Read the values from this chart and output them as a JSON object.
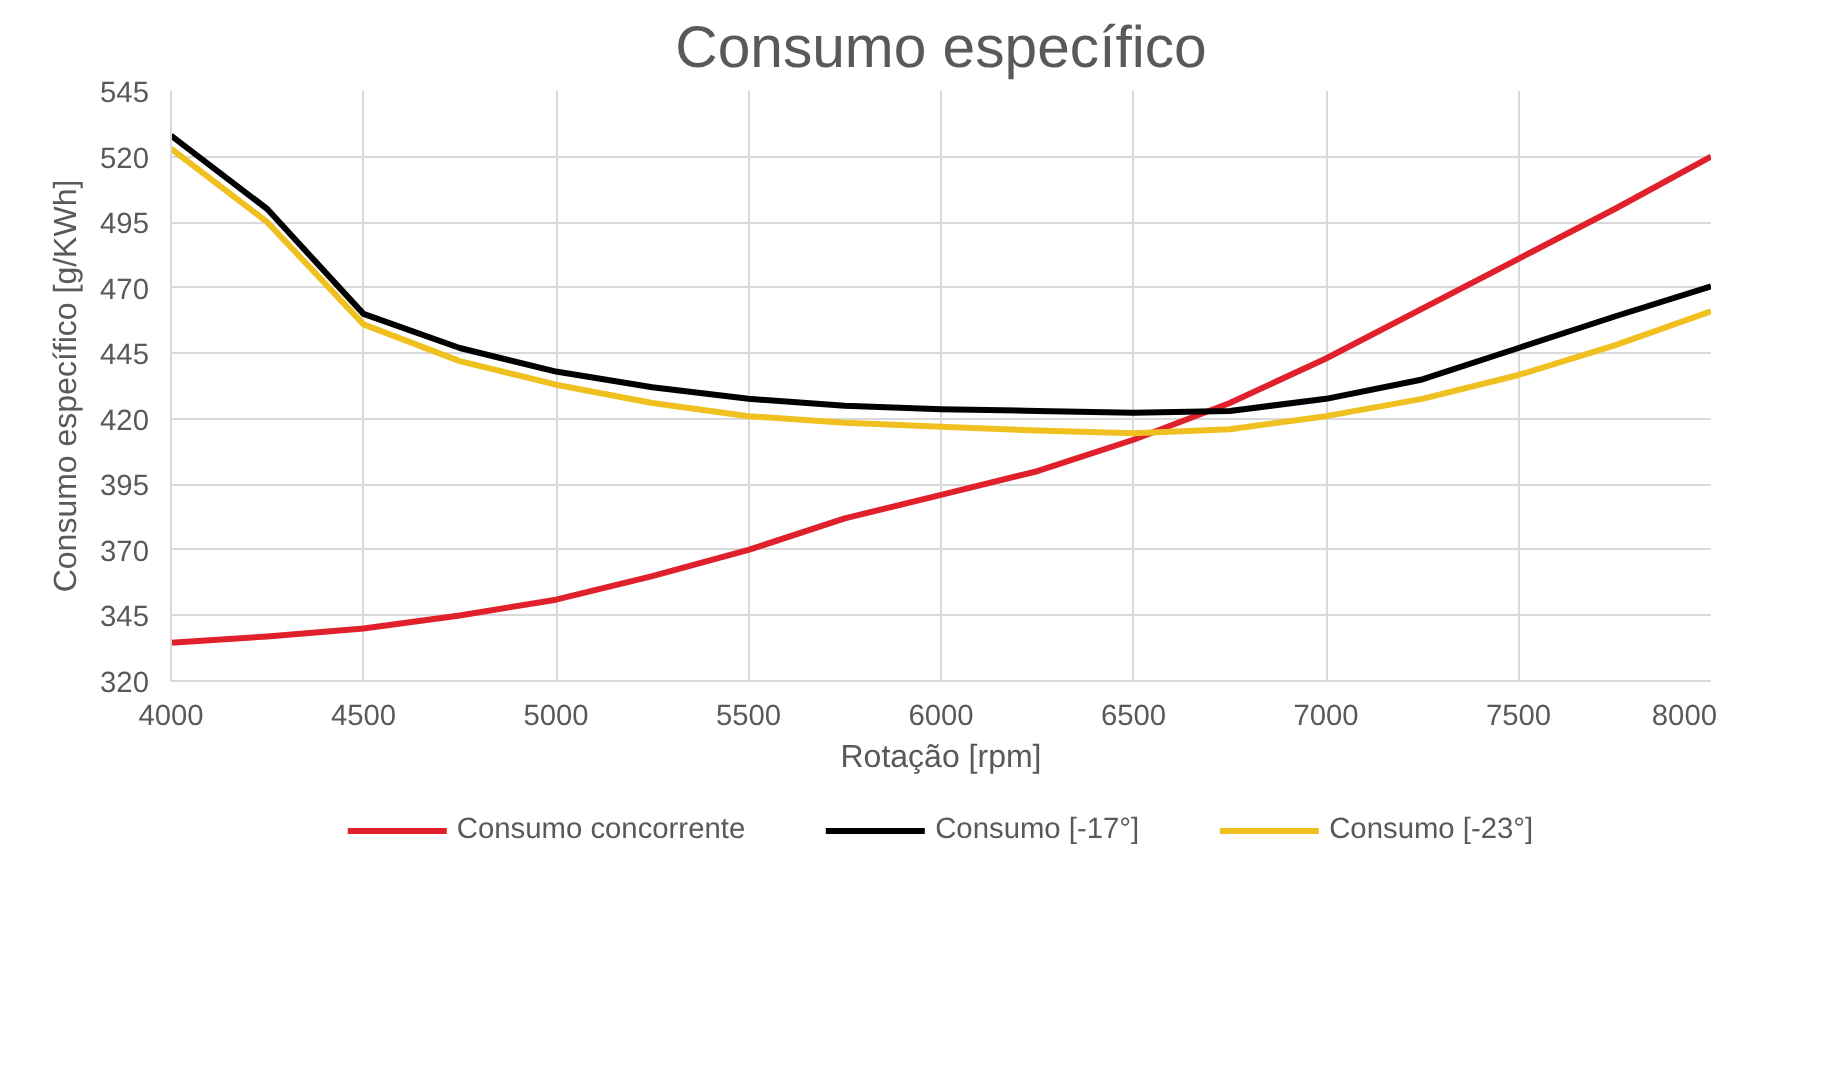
{
  "chart_data": {
    "type": "line",
    "title": "Consumo específico",
    "xlabel": "Rotação [rpm]",
    "ylabel": "Consumo específico [g/KWh]",
    "x": [
      4000,
      4250,
      4500,
      4750,
      5000,
      5250,
      5500,
      5750,
      6000,
      6250,
      6500,
      6750,
      7000,
      7250,
      7500,
      7750,
      8000
    ],
    "series": [
      {
        "name": "Consumo concorrente",
        "color": "#e0202a",
        "values": [
          334.6,
          337,
          340,
          345,
          351,
          360,
          370,
          382,
          391,
          400,
          412,
          426,
          443,
          462,
          481,
          500,
          520
        ]
      },
      {
        "name": "Consumo [-17°]",
        "color": "#000000",
        "values": [
          528,
          500,
          460,
          447,
          438,
          432,
          427.6,
          425,
          423.6,
          423,
          422.3,
          423,
          427.6,
          435,
          447,
          459,
          470.5
        ]
      },
      {
        "name": "Consumo [-23°]",
        "color": "#f0c020",
        "values": [
          523,
          495,
          456,
          442,
          433,
          426,
          421,
          418.5,
          417,
          415.5,
          414.5,
          416,
          421,
          427.6,
          436.7,
          448,
          461
        ]
      }
    ],
    "xlim": [
      4000,
      8000
    ],
    "xticks": [
      4000,
      4500,
      5000,
      5500,
      6000,
      6500,
      7000,
      7500,
      8000
    ],
    "ylim": [
      320,
      545
    ],
    "yticks": [
      320,
      345,
      370,
      395,
      420,
      445,
      470,
      495,
      520,
      545
    ],
    "grid": true,
    "legend": "bottom",
    "marker": "none",
    "line_style": "solid"
  }
}
